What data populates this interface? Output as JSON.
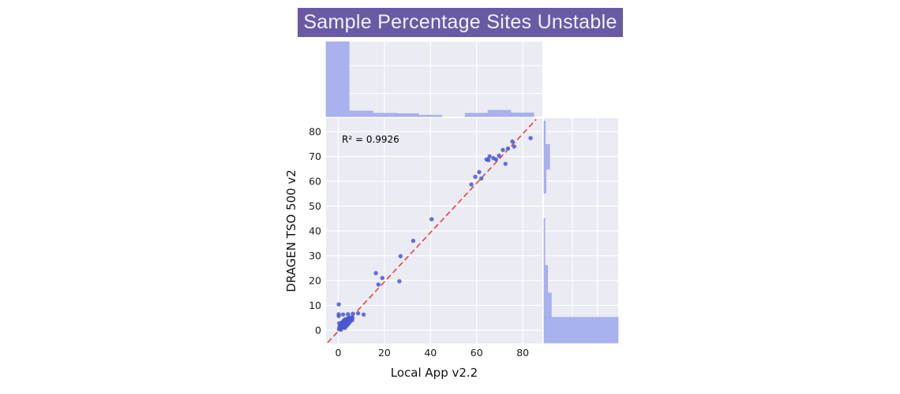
{
  "title": "Sample Percentage Sites Unstable",
  "colors": {
    "banner_bg": "#6a5aa4",
    "banner_text": "#f4f0fa",
    "plot_bg": "#eaebf3",
    "grid": "#ffffff",
    "bar_fill": "#a9b1ef",
    "bar_edge": "#9ea7ec",
    "point": "#4a58d0",
    "line": "#e0453f",
    "text": "#111111"
  },
  "chart_data": {
    "type": "scatter",
    "title": "Sample Percentage Sites Unstable",
    "xlabel": "Local App v2.2",
    "ylabel": "DRAGEN TSO 500 v2",
    "annotation": "R² = 0.9926",
    "r_squared": 0.9926,
    "legend": false,
    "grid": true,
    "xlim": [
      -5.3,
      88.5
    ],
    "ylim": [
      -5.4,
      85.4
    ],
    "x_ticks": [
      0,
      20,
      40,
      60,
      80
    ],
    "y_ticks": [
      0,
      10,
      20,
      30,
      40,
      50,
      60,
      70,
      80
    ],
    "regression_line": {
      "from": [
        -4.6,
        -5.0
      ],
      "to": [
        85.8,
        84.9
      ],
      "style": "dashed"
    },
    "points": [
      [
        0.3,
        0.4
      ],
      [
        0.5,
        1.3
      ],
      [
        0.8,
        0.8
      ],
      [
        0.9,
        2.1
      ],
      [
        1.0,
        1.6
      ],
      [
        1.2,
        0.5
      ],
      [
        1.3,
        2.6
      ],
      [
        1.5,
        1.2
      ],
      [
        1.6,
        3.1
      ],
      [
        1.8,
        2.2
      ],
      [
        2.0,
        1.0
      ],
      [
        2.0,
        3.0
      ],
      [
        2.2,
        3.6
      ],
      [
        2.3,
        1.7
      ],
      [
        2.5,
        2.6
      ],
      [
        2.6,
        4.1
      ],
      [
        2.8,
        2.1
      ],
      [
        3.0,
        3.3
      ],
      [
        3.1,
        1.4
      ],
      [
        3.2,
        4.4
      ],
      [
        3.4,
        2.7
      ],
      [
        3.5,
        3.9
      ],
      [
        3.6,
        1.8
      ],
      [
        3.8,
        3.1
      ],
      [
        4.0,
        4.6
      ],
      [
        4.1,
        2.3
      ],
      [
        4.3,
        3.7
      ],
      [
        4.5,
        4.9
      ],
      [
        4.6,
        2.8
      ],
      [
        4.8,
        4.1
      ],
      [
        5.0,
        5.1
      ],
      [
        5.2,
        3.5
      ],
      [
        5.5,
        4.5
      ],
      [
        5.8,
        5.0
      ],
      [
        6.0,
        4.0
      ],
      [
        6.2,
        5.0
      ],
      [
        0.4,
        2.8
      ],
      [
        0.2,
        5.7
      ],
      [
        1.1,
        0.2
      ],
      [
        2.9,
        0.9
      ],
      [
        0.2,
        10.4
      ],
      [
        0.2,
        6.4
      ],
      [
        2.1,
        6.3
      ],
      [
        4.2,
        6.4
      ],
      [
        6.3,
        6.6
      ],
      [
        8.6,
        6.8
      ],
      [
        11.0,
        6.3
      ],
      [
        16.3,
        23.0
      ],
      [
        17.4,
        18.4
      ],
      [
        19.1,
        21.0
      ],
      [
        26.5,
        19.7
      ],
      [
        27.0,
        29.8
      ],
      [
        32.5,
        36.0
      ],
      [
        40.5,
        44.7
      ],
      [
        57.7,
        58.7
      ],
      [
        59.4,
        61.8
      ],
      [
        62.0,
        61.1
      ],
      [
        61.1,
        63.7
      ],
      [
        64.3,
        68.8
      ],
      [
        65.1,
        68.5
      ],
      [
        65.6,
        70.0
      ],
      [
        67.3,
        69.3
      ],
      [
        68.4,
        68.8
      ],
      [
        69.7,
        70.3
      ],
      [
        71.4,
        72.6
      ],
      [
        72.5,
        67.0
      ],
      [
        73.6,
        73.2
      ],
      [
        75.5,
        76.0
      ],
      [
        76.3,
        74.0
      ],
      [
        83.4,
        77.4
      ]
    ],
    "x_marginal_hist": {
      "bin_edges": [
        -5.3,
        4.7,
        15.0,
        25.3,
        34.9,
        44.9,
        55.0,
        64.9,
        74.8,
        84.8
      ],
      "heights_fraction": [
        1.0,
        0.075,
        0.045,
        0.04,
        0.02,
        0,
        0.045,
        0.085,
        0.05
      ]
    },
    "y_marginal_hist": {
      "bin_edges": [
        -5.1,
        5.2,
        15.0,
        26.1,
        36.0,
        45.0,
        55.2,
        64.8,
        74.8,
        84.3
      ],
      "widths_fraction": [
        1.0,
        0.1,
        0.05,
        0.012,
        0.012,
        0,
        0.028,
        0.078,
        0.02
      ]
    }
  }
}
